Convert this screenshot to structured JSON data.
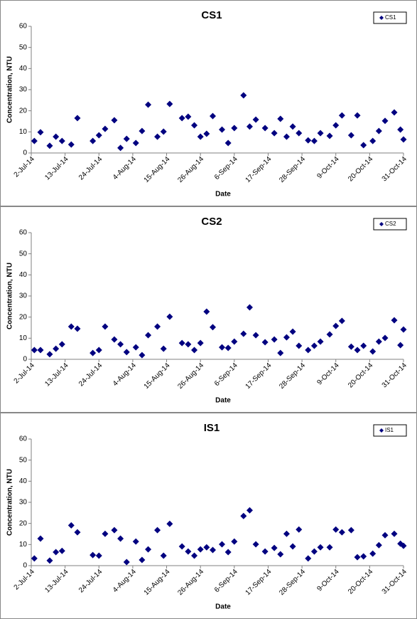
{
  "chart_data": [
    {
      "type": "scatter",
      "title": "CS1",
      "x_label": "Date",
      "y_label": "Concentration, NTU",
      "legend": "upper right",
      "series": [
        {
          "name": "CS1",
          "color": "#000080",
          "x": [
            "3-Jul-14",
            "5-Jul-14",
            "8-Jul-14",
            "10-Jul-14",
            "12-Jul-14",
            "15-Jul-14",
            "17-Jul-14",
            "22-Jul-14",
            "24-Jul-14",
            "26-Jul-14",
            "29-Jul-14",
            "31-Jul-14",
            "2-Aug-14",
            "5-Aug-14",
            "7-Aug-14",
            "9-Aug-14",
            "12-Aug-14",
            "14-Aug-14",
            "16-Aug-14",
            "20-Aug-14",
            "22-Aug-14",
            "24-Aug-14",
            "26-Aug-14",
            "28-Aug-14",
            "30-Aug-14",
            "2-Sep-14",
            "4-Sep-14",
            "6-Sep-14",
            "9-Sep-14",
            "11-Sep-14",
            "13-Sep-14",
            "16-Sep-14",
            "19-Sep-14",
            "21-Sep-14",
            "23-Sep-14",
            "25-Sep-14",
            "27-Sep-14",
            "30-Sep-14",
            "2-Oct-14",
            "4-Oct-14",
            "7-Oct-14",
            "9-Oct-14",
            "11-Oct-14",
            "14-Oct-14",
            "16-Oct-14",
            "18-Oct-14",
            "21-Oct-14",
            "23-Oct-14",
            "25-Oct-14",
            "28-Oct-14",
            "30-Oct-14",
            "31-Oct-14"
          ],
          "values": [
            5.7,
            9.8,
            3.4,
            7.7,
            5.7,
            4,
            16.5,
            5.7,
            8.4,
            11.4,
            15.5,
            2.4,
            6.7,
            4.7,
            10.4,
            22.9,
            7.7,
            10.1,
            23.2,
            16.5,
            17.2,
            13.1,
            7.7,
            9.1,
            17.5,
            11.1,
            4.7,
            11.8,
            27.3,
            12.5,
            15.8,
            11.8,
            9.4,
            16.2,
            7.7,
            12.5,
            9.4,
            6,
            5.7,
            9.4,
            8.1,
            13.1,
            17.8,
            8.4,
            17.8,
            3.7,
            5.7,
            10.4,
            15.2,
            19.2,
            11.1,
            6.4
          ]
        }
      ],
      "xlim": [
        "2-Jul-14",
        "31-Oct-14"
      ],
      "xticks": [
        "2-Jul-14",
        "13-Jul-14",
        "24-Jul-14",
        "4-Aug-14",
        "15-Aug-14",
        "26-Aug-14",
        "6-Sep-14",
        "17-Sep-14",
        "28-Sep-14",
        "9-Oct-14",
        "20-Oct-14",
        "31-Oct-14"
      ],
      "ylim": [
        0,
        60
      ],
      "yticks": [
        0,
        10,
        20,
        30,
        40,
        50,
        60
      ]
    },
    {
      "type": "scatter",
      "title": "CS2",
      "x_label": "Date",
      "y_label": "Concentration, NTU",
      "legend": "upper right",
      "series": [
        {
          "name": "CS2",
          "color": "#000080",
          "x": [
            "3-Jul-14",
            "5-Jul-14",
            "8-Jul-14",
            "10-Jul-14",
            "12-Jul-14",
            "15-Jul-14",
            "17-Jul-14",
            "22-Jul-14",
            "24-Jul-14",
            "26-Jul-14",
            "29-Jul-14",
            "31-Jul-14",
            "2-Aug-14",
            "5-Aug-14",
            "7-Aug-14",
            "9-Aug-14",
            "12-Aug-14",
            "14-Aug-14",
            "16-Aug-14",
            "20-Aug-14",
            "22-Aug-14",
            "24-Aug-14",
            "26-Aug-14",
            "28-Aug-14",
            "30-Aug-14",
            "2-Sep-14",
            "4-Sep-14",
            "6-Sep-14",
            "9-Sep-14",
            "11-Sep-14",
            "13-Sep-14",
            "16-Sep-14",
            "19-Sep-14",
            "21-Sep-14",
            "23-Sep-14",
            "25-Sep-14",
            "27-Sep-14",
            "30-Sep-14",
            "2-Oct-14",
            "4-Oct-14",
            "7-Oct-14",
            "9-Oct-14",
            "11-Oct-14",
            "14-Oct-14",
            "16-Oct-14",
            "18-Oct-14",
            "21-Oct-14",
            "23-Oct-14",
            "25-Oct-14",
            "28-Oct-14",
            "30-Oct-14",
            "31-Oct-14"
          ],
          "values": [
            4.4,
            4.4,
            2.4,
            5,
            7.1,
            15.5,
            14.5,
            3,
            4.4,
            15.5,
            9.4,
            7.1,
            3.4,
            5.7,
            2,
            11.4,
            15.5,
            5,
            20.2,
            7.7,
            7.1,
            4.4,
            7.7,
            22.6,
            15.2,
            5.7,
            5.4,
            8.4,
            12.1,
            24.6,
            11.4,
            8.1,
            9.4,
            3,
            10.4,
            13.1,
            6.4,
            4.4,
            6.4,
            8.4,
            11.8,
            15.8,
            18.2,
            6,
            4.4,
            6.4,
            3.7,
            8.4,
            10.1,
            18.5,
            6.7,
            14.1
          ]
        }
      ],
      "xlim": [
        "2-Jul-14",
        "31-Oct-14"
      ],
      "xticks": [
        "2-Jul-14",
        "13-Jul-14",
        "24-Jul-14",
        "4-Aug-14",
        "15-Aug-14",
        "26-Aug-14",
        "6-Sep-14",
        "17-Sep-14",
        "28-Sep-14",
        "9-Oct-14",
        "20-Oct-14",
        "31-Oct-14"
      ],
      "ylim": [
        0,
        60
      ],
      "yticks": [
        0,
        10,
        20,
        30,
        40,
        50,
        60
      ]
    },
    {
      "type": "scatter",
      "title": "IS1",
      "x_label": "Date",
      "y_label": "Concentration, NTU",
      "legend": "upper right",
      "series": [
        {
          "name": "IS1",
          "color": "#000080",
          "x": [
            "3-Jul-14",
            "5-Jul-14",
            "8-Jul-14",
            "10-Jul-14",
            "12-Jul-14",
            "15-Jul-14",
            "17-Jul-14",
            "22-Jul-14",
            "24-Jul-14",
            "26-Jul-14",
            "29-Jul-14",
            "31-Jul-14",
            "2-Aug-14",
            "5-Aug-14",
            "7-Aug-14",
            "9-Aug-14",
            "12-Aug-14",
            "14-Aug-14",
            "16-Aug-14",
            "20-Aug-14",
            "22-Aug-14",
            "24-Aug-14",
            "26-Aug-14",
            "28-Aug-14",
            "30-Aug-14",
            "2-Sep-14",
            "4-Sep-14",
            "6-Sep-14",
            "9-Sep-14",
            "11-Sep-14",
            "13-Sep-14",
            "16-Sep-14",
            "19-Sep-14",
            "21-Sep-14",
            "23-Sep-14",
            "25-Sep-14",
            "27-Sep-14",
            "30-Sep-14",
            "2-Oct-14",
            "4-Oct-14",
            "7-Oct-14",
            "9-Oct-14",
            "11-Oct-14",
            "14-Oct-14",
            "16-Oct-14",
            "18-Oct-14",
            "21-Oct-14",
            "23-Oct-14",
            "25-Oct-14",
            "28-Oct-14",
            "30-Oct-14",
            "31-Oct-14"
          ],
          "values": [
            3.4,
            12.8,
            2.4,
            6.4,
            7,
            19.1,
            15.8,
            5,
            4.7,
            15.1,
            16.8,
            12.8,
            1.7,
            11.4,
            2.7,
            7.7,
            16.8,
            4.7,
            19.8,
            9.1,
            6.7,
            4.7,
            7.7,
            8.7,
            7.4,
            10.1,
            6.4,
            11.4,
            23.5,
            26.2,
            10.1,
            6.7,
            8.4,
            5.4,
            15.1,
            9.1,
            17.1,
            3.4,
            6.7,
            8.7,
            8.7,
            17.1,
            15.8,
            16.8,
            4,
            4.4,
            5.7,
            9.7,
            14.4,
            15.1,
            10.4,
            9.4
          ]
        }
      ],
      "xlim": [
        "2-Jul-14",
        "31-Oct-14"
      ],
      "xticks": [
        "2-Jul-14",
        "13-Jul-14",
        "24-Jul-14",
        "4-Aug-14",
        "15-Aug-14",
        "26-Aug-14",
        "6-Sep-14",
        "17-Sep-14",
        "28-Sep-14",
        "9-Oct-14",
        "20-Oct-14",
        "31-Oct-14"
      ],
      "ylim": [
        0,
        60
      ],
      "yticks": [
        0,
        10,
        20,
        30,
        40,
        50,
        60
      ]
    }
  ]
}
